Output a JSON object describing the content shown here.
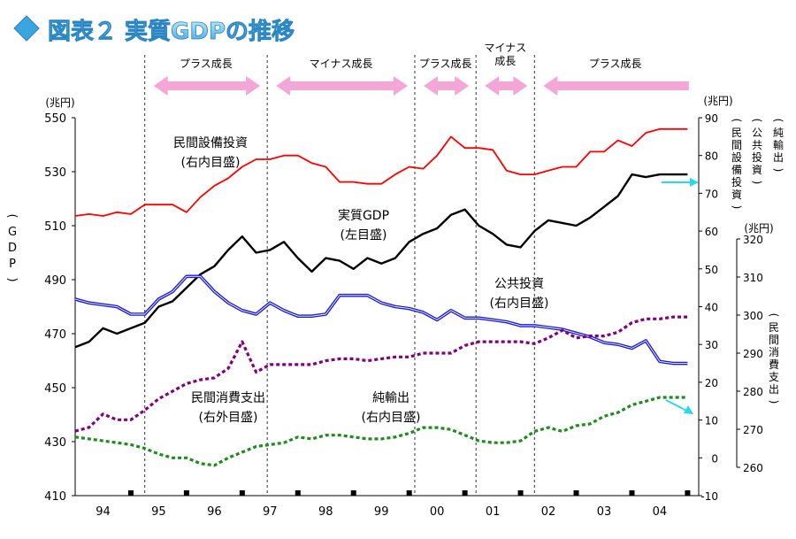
{
  "figure": {
    "title": "図表２ 実質GDPの推移",
    "phases": [
      "プラス成長",
      "マイナス成長",
      "プラス成長",
      "マイナス\n成長",
      "プラス成長"
    ]
  },
  "chart_data": {
    "type": "line",
    "x": [
      "94",
      "95",
      "96",
      "97",
      "98",
      "99",
      "00",
      "01",
      "02",
      "03",
      "04"
    ],
    "axes": {
      "left": {
        "unit": "(兆円)",
        "label": "(GDP)",
        "ylim": [
          410,
          550
        ],
        "ticks": [
          410,
          430,
          450,
          470,
          490,
          510,
          530,
          550
        ]
      },
      "right_inner": {
        "unit": "(兆円)",
        "ylim": [
          -10,
          90
        ],
        "ticks": [
          -10,
          0,
          10,
          20,
          30,
          40,
          50,
          60,
          70,
          80,
          90
        ]
      },
      "right_outer": {
        "unit": "(兆円)",
        "ylim": [
          260,
          320
        ],
        "ticks": [
          260,
          270,
          280,
          290,
          300,
          310,
          320
        ]
      },
      "right_labels": [
        "(民間設備投資)",
        "(公共投資)",
        "(純輸出)",
        "(民間消費支出)"
      ]
    },
    "series": [
      {
        "name": "実質GDP",
        "annotation": "実質GDP\n(左目盛)",
        "color": "#000000",
        "axis": "left",
        "x": [
          93.5,
          93.75,
          94,
          94.25,
          94.5,
          94.75,
          95,
          95.25,
          95.5,
          95.75,
          96,
          96.25,
          96.5,
          96.75,
          97,
          97.25,
          97.5,
          97.75,
          98,
          98.25,
          98.5,
          98.75,
          99,
          99.25,
          99.5,
          99.75,
          100,
          100.25,
          100.5,
          100.75,
          101,
          101.25,
          101.5,
          101.75,
          102,
          102.25,
          102.5,
          102.75,
          103,
          103.25,
          103.5,
          103.75,
          104,
          104.25,
          104.5
        ],
        "values": [
          465,
          467,
          472,
          470,
          472,
          474,
          480,
          482,
          487,
          492,
          495,
          501,
          506,
          500,
          501,
          504,
          498,
          493,
          498,
          497,
          494,
          498,
          496,
          498,
          504,
          507,
          509,
          514,
          516,
          510,
          507,
          503,
          502,
          508,
          512,
          511,
          510,
          513,
          517,
          521,
          529,
          528,
          529,
          529,
          529
        ]
      },
      {
        "name": "民間設備投資",
        "annotation": "民間設備投資\n(右内目盛)",
        "color": "#ff0000",
        "axis": "right_inner",
        "x": [
          93.5,
          93.75,
          94,
          94.25,
          94.5,
          94.75,
          95,
          95.25,
          95.5,
          95.75,
          96,
          96.25,
          96.5,
          96.75,
          97,
          97.25,
          97.5,
          97.75,
          98,
          98.25,
          98.5,
          98.75,
          99,
          99.25,
          99.5,
          99.75,
          100,
          100.25,
          100.5,
          100.75,
          101,
          101.25,
          101.5,
          101.75,
          102,
          102.25,
          102.5,
          102.75,
          103,
          103.25,
          103.5,
          103.75,
          104,
          104.25,
          104.5
        ],
        "values": [
          64,
          64.5,
          64,
          65,
          64.5,
          67,
          67,
          67,
          65,
          69,
          72,
          74,
          77,
          79,
          79,
          80,
          80,
          78,
          77,
          73,
          73,
          72.5,
          72.5,
          75,
          77,
          76.5,
          80,
          85,
          82,
          82,
          81.5,
          76,
          75,
          75,
          76,
          77,
          77,
          81,
          81,
          84,
          82.5,
          86,
          87,
          87,
          87
        ]
      },
      {
        "name": "公共投資",
        "annotation": "公共投資\n(右内目盛)",
        "color": "#1a1adc",
        "axis": "right_inner",
        "x": [
          93.5,
          93.75,
          94,
          94.25,
          94.5,
          94.75,
          95,
          95.25,
          95.5,
          95.75,
          96,
          96.25,
          96.5,
          96.75,
          97,
          97.25,
          97.5,
          97.75,
          98,
          98.25,
          98.5,
          98.75,
          99,
          99.25,
          99.5,
          99.75,
          100,
          100.25,
          100.5,
          100.75,
          101,
          101.25,
          101.5,
          101.75,
          102,
          102.25,
          102.5,
          102.75,
          103,
          103.25,
          103.5,
          103.75,
          104,
          104.25,
          104.5
        ],
        "values": [
          42,
          41,
          40.5,
          40,
          38,
          38,
          42,
          44,
          48,
          48,
          44,
          41,
          39,
          38,
          41,
          39,
          37.5,
          37.5,
          38,
          43,
          43,
          43,
          41,
          40,
          39.5,
          38.5,
          36.5,
          39,
          37,
          37,
          36.5,
          36,
          35,
          35,
          34.5,
          34,
          33,
          32,
          30.5,
          30,
          29,
          31,
          25.5,
          25,
          25
        ]
      },
      {
        "name": "民間消費支出",
        "annotation": "民間消費支出\n(右外目盛)",
        "color": "#800080",
        "axis": "right_outer",
        "x": [
          93.5,
          93.75,
          94,
          94.25,
          94.5,
          94.75,
          95,
          95.25,
          95.5,
          95.75,
          96,
          96.25,
          96.5,
          96.75,
          97,
          97.25,
          97.5,
          97.75,
          98,
          98.25,
          98.5,
          98.75,
          99,
          99.25,
          99.5,
          99.75,
          100,
          100.25,
          100.5,
          100.75,
          101,
          101.25,
          101.5,
          101.75,
          102,
          102.25,
          102.5,
          102.75,
          103,
          103.25,
          103.5,
          103.75,
          104,
          104.25,
          104.5
        ],
        "values": [
          269.5,
          270.5,
          274,
          272.5,
          272.5,
          275,
          278,
          280,
          282,
          283,
          283.5,
          286,
          293,
          285,
          287,
          287,
          287,
          287,
          288,
          288.5,
          288.5,
          288,
          288.5,
          289,
          289,
          290,
          290,
          290,
          292,
          293,
          293,
          293,
          293,
          292.5,
          294,
          296,
          294,
          294.5,
          294.5,
          295.5,
          298,
          299,
          299,
          299.5,
          299.5
        ]
      },
      {
        "name": "純輸出",
        "annotation": "純輸出\n(右内目盛)",
        "color": "#1e8c1e",
        "axis": "right_inner",
        "x": [
          93.5,
          93.75,
          94,
          94.25,
          94.5,
          94.75,
          95,
          95.25,
          95.5,
          95.75,
          96,
          96.25,
          96.5,
          96.75,
          97,
          97.25,
          97.5,
          97.75,
          98,
          98.25,
          98.5,
          98.75,
          99,
          99.25,
          99.5,
          99.75,
          100,
          100.25,
          100.5,
          100.75,
          101,
          101.25,
          101.5,
          101.75,
          102,
          102.25,
          102.5,
          102.75,
          103,
          103.25,
          103.5,
          103.75,
          104,
          104.25,
          104.5
        ],
        "values": [
          5.5,
          5,
          4.5,
          4,
          3.5,
          2.5,
          1,
          0,
          0,
          -1.5,
          -2,
          0,
          1.5,
          3,
          3.5,
          4,
          5.5,
          5,
          6,
          6,
          5.5,
          5,
          5,
          5.5,
          6.5,
          8,
          8,
          7.5,
          6,
          4.5,
          4,
          4,
          4.5,
          7,
          8,
          7,
          8.5,
          9,
          11,
          12,
          14,
          15,
          16,
          16,
          16
        ]
      }
    ],
    "legend": "none",
    "grid": false,
    "arrows_note": "末端の水色矢印は右内目盛を示す"
  }
}
